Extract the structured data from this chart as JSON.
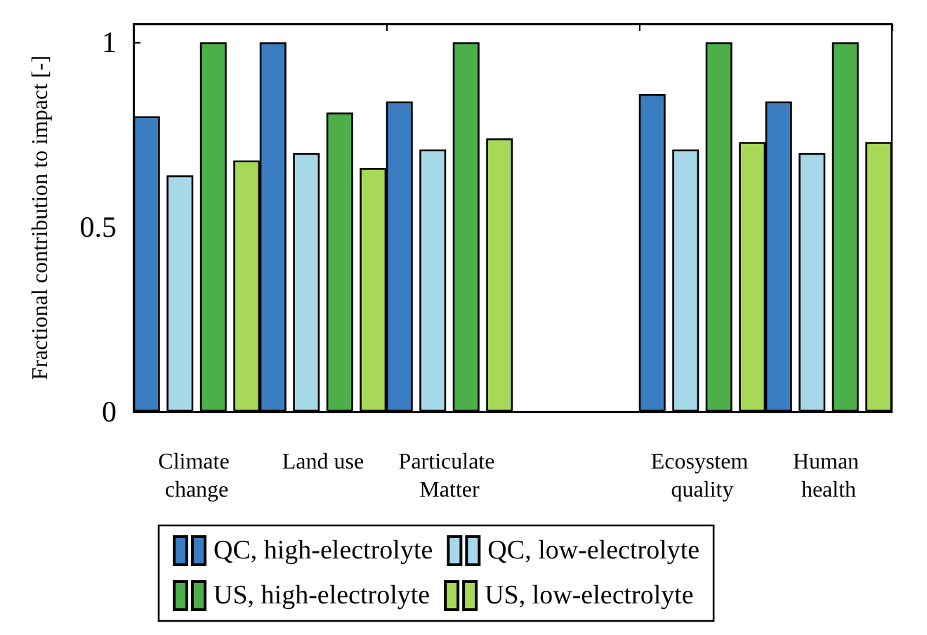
{
  "chart_data": {
    "type": "bar",
    "ylabel": "Fractional contribution to impact [-]",
    "categories": [
      "Climate change",
      "Land use",
      "Particulate Matter",
      null,
      "Ecosystem quality",
      "Human health"
    ],
    "series": [
      {
        "name": "QC, high-electrolyte",
        "color": "#3a7dc0",
        "values": [
          0.8,
          1,
          0.84,
          null,
          0.86,
          0.84
        ]
      },
      {
        "name": "QC, low-electrolyte",
        "color": "#a6d8e8",
        "values": [
          0.64,
          0.7,
          0.71,
          null,
          0.71,
          0.7
        ]
      },
      {
        "name": "US, high-electrolyte",
        "color": "#4caf4a",
        "values": [
          1,
          0.81,
          1,
          null,
          1,
          1
        ]
      },
      {
        "name": "US, low-electrolyte",
        "color": "#a8d858",
        "values": [
          0.68,
          0.66,
          0.74,
          null,
          0.73,
          0.73
        ]
      }
    ],
    "ylim": [
      0,
      1.05
    ],
    "yticks": [
      0,
      0.5,
      1
    ],
    "grid": false,
    "legend": "bottom"
  }
}
